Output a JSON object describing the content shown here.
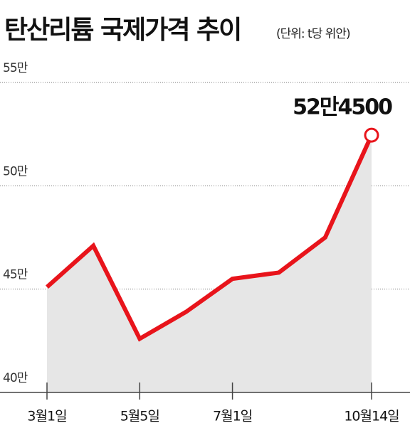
{
  "chart_data": {
    "type": "line",
    "title": "탄산리튬 국제가격 추이",
    "subtitle": "(단위: t당 위안)",
    "categories": [
      "3월1일",
      null,
      "5월5일",
      null,
      "7월1일",
      null,
      null,
      "10월14일"
    ],
    "series": [
      {
        "name": null,
        "color": "#e8141b",
        "values": [
          451000,
          471000,
          426000,
          439000,
          455000,
          458000,
          475000,
          524500
        ],
        "value_labels": [
          null,
          null,
          null,
          null,
          null,
          null,
          null,
          "52만4500"
        ]
      }
    ],
    "ylim": [
      400000,
      550000
    ],
    "yticks": [
      {
        "value": 400000,
        "label": "40만"
      },
      {
        "value": 450000,
        "label": "45만"
      },
      {
        "value": 500000,
        "label": "50만"
      },
      {
        "value": 550000,
        "label": "55만"
      }
    ],
    "grid": true,
    "area_color": "#e6e6e6"
  }
}
